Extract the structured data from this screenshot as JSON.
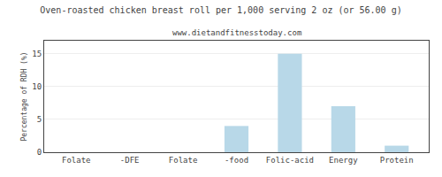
{
  "chart_data": {
    "type": "bar",
    "title": "Oven-roasted chicken breast roll per 1,000 serving 2 oz (or 56.00 g)",
    "subtitle": "www.dietandfitnesstoday.com",
    "categories": [
      "Folate",
      "-DFE",
      "Folate",
      "-food",
      "Folic-acid",
      "Energy",
      "Protein"
    ],
    "values": [
      0,
      0,
      0,
      4,
      15,
      7,
      1
    ],
    "color": "#b8d8e8",
    "ylabel": "Percentage of RDH (%)",
    "ylim": [
      0,
      17
    ],
    "yticks": [
      0,
      5,
      10,
      15
    ],
    "grid": true
  }
}
